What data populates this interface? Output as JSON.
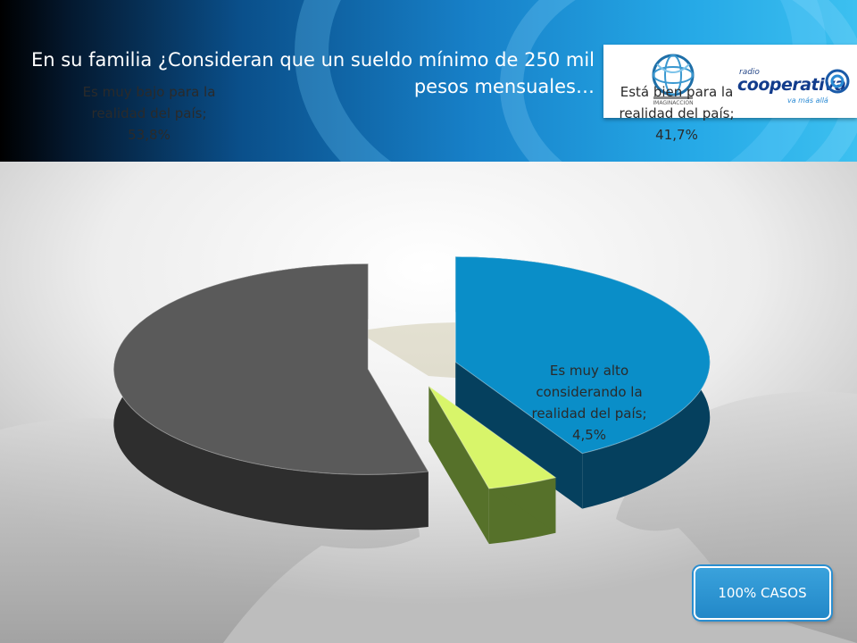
{
  "header": {
    "title": "En su familia ¿Consideran que un sueldo mínimo de 250 mil pesos mensuales…",
    "logos": {
      "globe_brand": "IMAGINACCION",
      "radio_small": "radio",
      "radio_name": "cooperativa",
      "radio_tagline": "va más allá"
    }
  },
  "badge": {
    "label": "100% CASOS"
  },
  "colors": {
    "gray_slice": "#5a5a5a",
    "blue_slice": "#0a8ec8",
    "green_slice": "#d8f56a"
  },
  "chart_data": {
    "type": "pie",
    "categories": [
      "Es muy bajo para la realidad del país",
      "Está bien para la realidad del país",
      "Es muy alto considerando la realidad del país"
    ],
    "values": [
      53.8,
      41.7,
      4.5
    ],
    "unit": "%",
    "labels": [
      "Es muy bajo para la realidad del país; 53,8%",
      "Está bien para la realidad del país; 41,7%",
      "Es muy alto considerando la realidad del país; 4,5%"
    ],
    "exploded": true,
    "style": "3d"
  }
}
